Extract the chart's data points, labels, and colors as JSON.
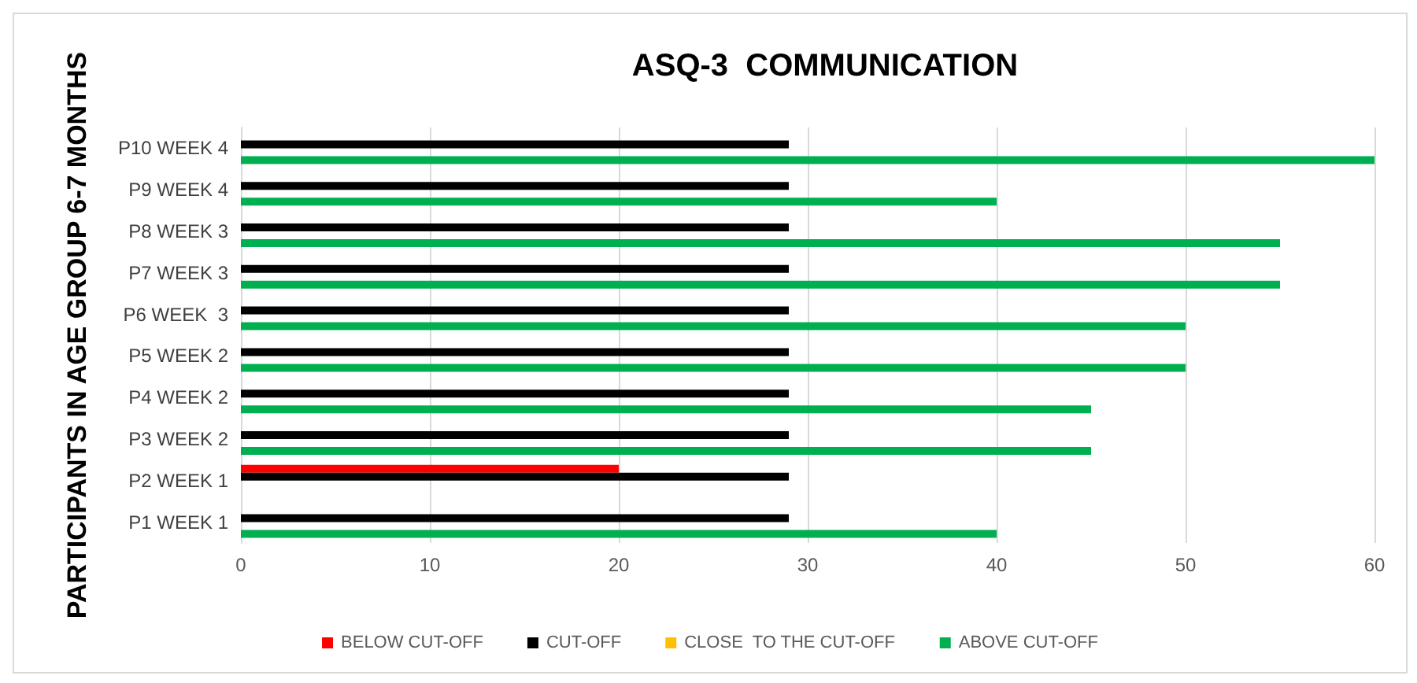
{
  "chart_data": {
    "type": "bar",
    "orientation": "horizontal",
    "title": "ASQ-3  COMMUNICATION",
    "ylabel": "PARTICIPANTS IN AGE GROUP 6-7 MONTHS",
    "categories": [
      "P10 WEEK 4",
      "P9 WEEK 4",
      "P8 WEEK 3",
      "P7 WEEK 3",
      "P6 WEEK  3",
      "P5 WEEK 2",
      "P4 WEEK 2",
      "P3 WEEK 2",
      "P2 WEEK 1",
      "P1 WEEK 1"
    ],
    "series": [
      {
        "name": "BELOW CUT-OFF",
        "color": "#ff0000",
        "values": [
          null,
          null,
          null,
          null,
          null,
          null,
          null,
          null,
          20,
          null
        ]
      },
      {
        "name": "CUT-OFF",
        "color": "#000000",
        "values": [
          29,
          29,
          29,
          29,
          29,
          29,
          29,
          29,
          29,
          29
        ]
      },
      {
        "name": "CLOSE  TO THE CUT-OFF",
        "color": "#ffc000",
        "values": [
          null,
          null,
          null,
          null,
          null,
          null,
          null,
          null,
          null,
          null
        ]
      },
      {
        "name": "ABOVE CUT-OFF",
        "color": "#00b050",
        "values": [
          60,
          40,
          55,
          55,
          50,
          50,
          45,
          45,
          null,
          40
        ]
      }
    ],
    "xlim": [
      0,
      60
    ],
    "xticks": [
      0,
      10,
      20,
      30,
      40,
      50,
      60
    ],
    "grid": "x",
    "legend": "bottom"
  }
}
